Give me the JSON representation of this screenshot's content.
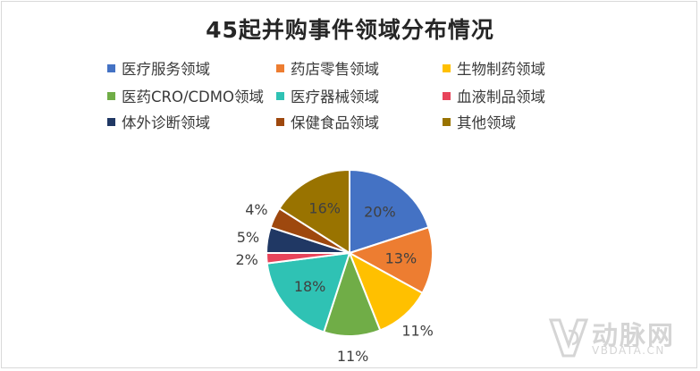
{
  "chart_data": {
    "type": "pie",
    "title": "45起并购事件领域分布情况",
    "categories": [
      "医疗服务领域",
      "药店零售领域",
      "生物制药领域",
      "医药CRO/CDMO领域",
      "医疗器械领域",
      "血液制品领域",
      "体外诊断领域",
      "保健食品领域",
      "其他领域"
    ],
    "values": [
      20,
      13,
      11,
      11,
      18,
      2,
      5,
      4,
      16
    ],
    "labels": [
      "20%",
      "13%",
      "11%",
      "11%",
      "18%",
      "2%",
      "5%",
      "4%",
      "16%"
    ],
    "colors": [
      "#4472c4",
      "#ed7d31",
      "#ffc000",
      "#70ad47",
      "#2fc2b4",
      "#e8445a",
      "#203864",
      "#9e480e",
      "#997300"
    ],
    "legend_position": "top"
  },
  "watermark": {
    "logo_text": "动脉网",
    "domain": "VBDATA.CN"
  }
}
